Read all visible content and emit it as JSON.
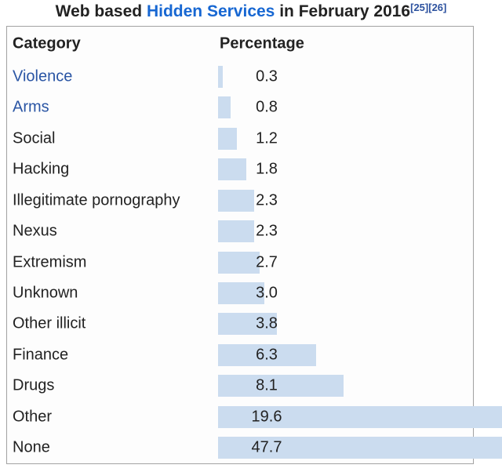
{
  "title": {
    "prefix": "Web based ",
    "link_text": "Hidden Services",
    "suffix": " in February 2016",
    "refs": [
      "[25]",
      "[26]"
    ]
  },
  "table": {
    "headers": {
      "category": "Category",
      "percentage": "Percentage"
    },
    "rows": [
      {
        "category": "Violence",
        "value": 0.3,
        "display": "0.3",
        "is_link": true
      },
      {
        "category": "Arms",
        "value": 0.8,
        "display": "0.8",
        "is_link": true
      },
      {
        "category": "Social",
        "value": 1.2,
        "display": "1.2",
        "is_link": false
      },
      {
        "category": "Hacking",
        "value": 1.8,
        "display": "1.8",
        "is_link": false
      },
      {
        "category": "Illegitimate pornography",
        "value": 2.3,
        "display": "2.3",
        "is_link": false
      },
      {
        "category": "Nexus",
        "value": 2.3,
        "display": "2.3",
        "is_link": false
      },
      {
        "category": "Extremism",
        "value": 2.7,
        "display": "2.7",
        "is_link": false
      },
      {
        "category": "Unknown",
        "value": 3.0,
        "display": "3.0",
        "is_link": false
      },
      {
        "category": "Other illicit",
        "value": 3.8,
        "display": "3.8",
        "is_link": false
      },
      {
        "category": "Finance",
        "value": 6.3,
        "display": "6.3",
        "is_link": false
      },
      {
        "category": "Drugs",
        "value": 8.1,
        "display": "8.1",
        "is_link": false
      },
      {
        "category": "Other",
        "value": 19.6,
        "display": "19.6",
        "is_link": false
      },
      {
        "category": "None",
        "value": 47.7,
        "display": "47.7",
        "is_link": false
      }
    ]
  },
  "colors": {
    "bar_fill": "#cbdcef",
    "title_link": "#1767d2",
    "category_link": "#2a55a4",
    "reference_link": "#2d529f",
    "table_border": "#a2a2a2",
    "text": "#222222",
    "background": "#ffffff"
  },
  "chart_data": {
    "type": "bar",
    "orientation": "horizontal",
    "title": "Web based Hidden Services in February 2016",
    "references": [
      "[25]",
      "[26]"
    ],
    "categories": [
      "Violence",
      "Arms",
      "Social",
      "Hacking",
      "Illegitimate pornography",
      "Nexus",
      "Extremism",
      "Unknown",
      "Other illicit",
      "Finance",
      "Drugs",
      "Other",
      "None"
    ],
    "values": [
      0.3,
      0.8,
      1.2,
      1.8,
      2.3,
      2.3,
      2.7,
      3.0,
      3.8,
      6.3,
      8.1,
      19.6,
      47.7
    ],
    "value_labels": [
      "0.3",
      "0.8",
      "1.2",
      "1.8",
      "2.3",
      "2.3",
      "2.7",
      "3.0",
      "3.8",
      "6.3",
      "8.1",
      "19.6",
      "47.7"
    ],
    "xlabel": "Percentage",
    "ylabel": "Category",
    "unit": "percent",
    "xlim_visible": [
      0,
      18.3
    ],
    "grid": false,
    "legend": false,
    "note": "Bars for Other (19.6) and None (47.7) overflow the table and are clipped at the right image edge"
  }
}
